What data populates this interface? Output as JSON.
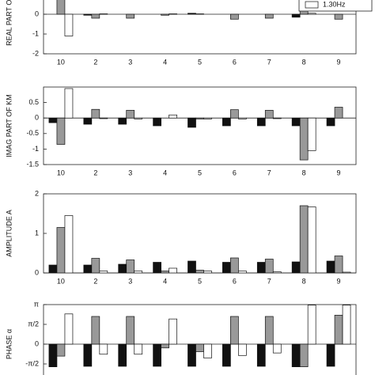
{
  "chart_data": [
    {
      "type": "bar",
      "ylabel": "REAL PART OF KM",
      "categories": [
        "10",
        "2",
        "3",
        "4",
        "5",
        "6",
        "7",
        "8",
        "9"
      ],
      "series": [
        {
          "color": "#111111",
          "values": [
            0.0,
            -0.05,
            0.0,
            0.0,
            0.05,
            0.0,
            0.0,
            -0.15,
            0.0
          ]
        },
        {
          "color": "#999999",
          "values": [
            0.8,
            -0.2,
            -0.2,
            -0.05,
            0.02,
            -0.25,
            -0.2,
            1.7,
            -0.25
          ]
        },
        {
          "name": "1.30Hz",
          "color": "#ffffff",
          "values": [
            -1.1,
            0.02,
            0.0,
            0.02,
            0.0,
            0.0,
            0.0,
            0.05,
            0.0
          ]
        }
      ],
      "ylim": [
        -2,
        2
      ],
      "yticks": [
        -2,
        -1,
        0
      ],
      "legend": "upper right"
    },
    {
      "type": "bar",
      "ylabel": "IMAG PART OF KM",
      "categories": [
        "10",
        "2",
        "3",
        "4",
        "5",
        "6",
        "7",
        "8",
        "9"
      ],
      "series": [
        {
          "color": "#111111",
          "values": [
            -0.15,
            -0.2,
            -0.2,
            -0.25,
            -0.3,
            -0.25,
            -0.25,
            -0.25,
            -0.25
          ]
        },
        {
          "color": "#999999",
          "values": [
            -0.85,
            0.28,
            0.25,
            0.0,
            -0.03,
            0.27,
            0.25,
            -1.35,
            0.35
          ]
        },
        {
          "color": "#ffffff",
          "values": [
            0.95,
            -0.02,
            -0.03,
            0.1,
            -0.03,
            -0.03,
            -0.02,
            -1.05,
            0.0
          ]
        }
      ],
      "ylim": [
        -1.5,
        1
      ],
      "yticks": [
        -1.5,
        -1,
        -0.5,
        0,
        0.5
      ]
    },
    {
      "type": "bar",
      "ylabel": "AMPLITUDE A",
      "categories": [
        "10",
        "2",
        "3",
        "4",
        "5",
        "6",
        "7",
        "8",
        "9"
      ],
      "series": [
        {
          "color": "#111111",
          "values": [
            0.2,
            0.2,
            0.22,
            0.27,
            0.3,
            0.27,
            0.27,
            0.28,
            0.3
          ]
        },
        {
          "color": "#999999",
          "values": [
            1.15,
            0.37,
            0.33,
            0.05,
            0.07,
            0.38,
            0.35,
            1.7,
            0.43
          ]
        },
        {
          "color": "#ffffff",
          "values": [
            1.45,
            0.05,
            0.05,
            0.12,
            0.05,
            0.05,
            0.03,
            1.67,
            0.02
          ]
        }
      ],
      "ylim": [
        0,
        2
      ],
      "yticks": [
        0,
        1,
        2
      ]
    },
    {
      "type": "bar",
      "ylabel": "PHASE α",
      "series": [
        {
          "color": "#111111",
          "values": [
            -1.8,
            -1.76,
            -1.76,
            -1.76,
            -1.76,
            -1.76,
            -1.76,
            -1.8,
            -1.76
          ]
        },
        {
          "color": "#999999",
          "values": [
            -0.95,
            2.2,
            2.2,
            -0.3,
            -0.6,
            2.2,
            2.2,
            -1.8,
            2.3
          ]
        },
        {
          "color": "#ffffff",
          "values": [
            2.4,
            -0.8,
            -0.8,
            2.0,
            -1.1,
            -0.9,
            -0.7,
            3.1,
            3.1
          ]
        }
      ],
      "ylim": [
        -3.14159,
        3.14159
      ],
      "yticks": [
        {
          "value": -1.5708,
          "label": "-π/2"
        },
        0,
        {
          "value": 1.5708,
          "label": "π/2"
        },
        {
          "value": 3.14159,
          "label": "π"
        }
      ]
    }
  ]
}
